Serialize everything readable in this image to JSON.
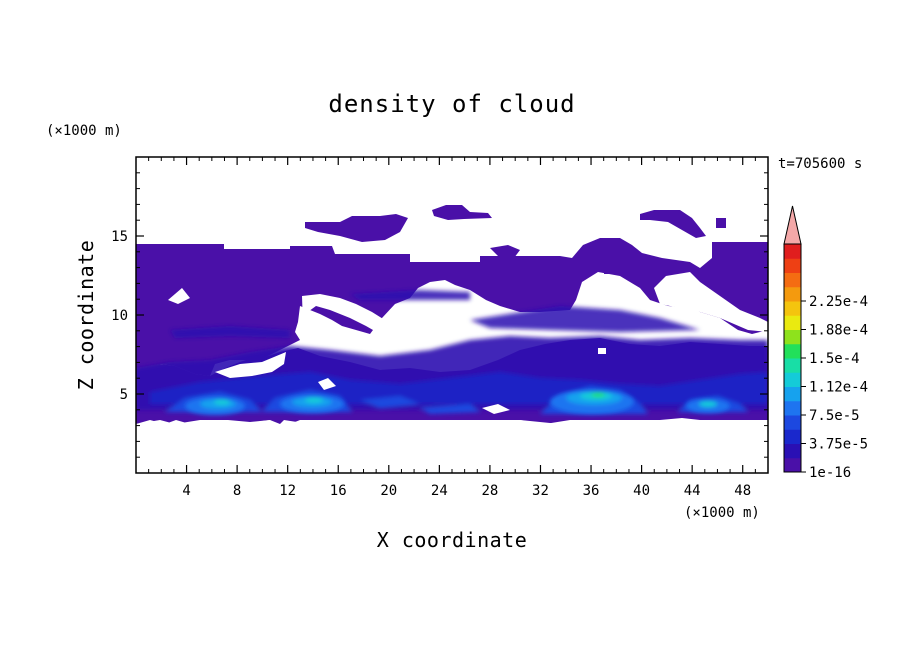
{
  "chart_data": {
    "type": "heatmap",
    "title": "density of cloud",
    "time_label": "t=705600 s",
    "xlabel": "X coordinate",
    "ylabel": "Z coordinate",
    "x_unit": "(×1000 m)",
    "y_unit": "(×1000 m)",
    "xlim": [
      0,
      50
    ],
    "ylim": [
      0,
      20
    ],
    "x_ticks": [
      4,
      8,
      12,
      16,
      20,
      24,
      28,
      32,
      36,
      40,
      44,
      48
    ],
    "y_ticks": [
      5,
      10,
      15
    ],
    "colorbar": {
      "extend": "max",
      "labels": [
        "1e-16",
        "3.75e-5",
        "7.5e-5",
        "1.12e-4",
        "1.5e-4",
        "1.88e-4",
        "2.25e-4"
      ],
      "colors": [
        "#4a10a8",
        "#2a10b4",
        "#1a28cc",
        "#1c48e0",
        "#1e74f0",
        "#16a2ee",
        "#14cbd8",
        "#18dea6",
        "#22e05a",
        "#8ee21c",
        "#eaea10",
        "#f4c40e",
        "#f49a0e",
        "#f46c12",
        "#ee4014",
        "#e01e1e"
      ],
      "extension_color": "#f4a8a8"
    },
    "cloud_regions": [
      {
        "name": "main-layer",
        "level": 0,
        "x_range": [
          0,
          50
        ],
        "z_range": [
          3.3,
          14.4
        ]
      },
      {
        "name": "upper-patch-1",
        "level": 0,
        "x_range": [
          13.2,
          21.5
        ],
        "z_range": [
          14.7,
          16.3
        ]
      },
      {
        "name": "upper-patch-2",
        "level": 0,
        "x_range": [
          23.2,
          27.6
        ],
        "z_range": [
          16.0,
          16.9
        ]
      },
      {
        "name": "upper-patch-3",
        "level": 0,
        "x_range": [
          40.6,
          46.2
        ],
        "z_range": [
          15.0,
          16.8
        ]
      },
      {
        "name": "core-1",
        "level": 6,
        "x_range": [
          5.0,
          9.0
        ],
        "z_range": [
          4.3,
          5.1
        ]
      },
      {
        "name": "core-2",
        "level": 6,
        "x_range": [
          12.5,
          16.0
        ],
        "z_range": [
          4.4,
          5.0
        ]
      },
      {
        "name": "core-3",
        "level": 7,
        "x_range": [
          33.0,
          38.5
        ],
        "z_range": [
          4.6,
          5.4
        ]
      },
      {
        "name": "core-4",
        "level": 6,
        "x_range": [
          43.5,
          45.5
        ],
        "z_range": [
          4.2,
          4.7
        ]
      }
    ]
  }
}
